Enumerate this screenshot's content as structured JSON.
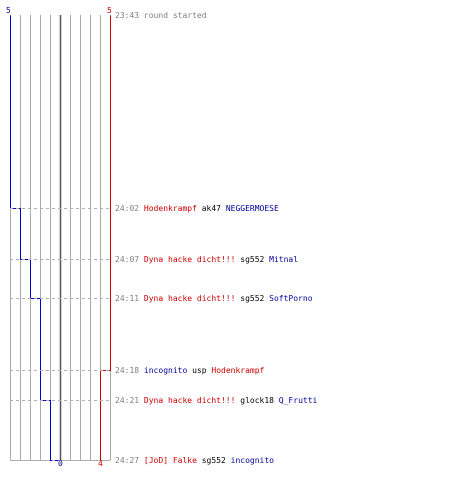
{
  "colors": {
    "team_blue": "#0000cc",
    "team_red": "#cc0000",
    "grid": "#aaaaaa",
    "center": "#555555",
    "connector": "#b0b0b0",
    "time_text": "#7f7f7f"
  },
  "scores": {
    "blue_top": "5",
    "red_top": "5",
    "blue_bottom": "0",
    "red_bottom": "4"
  },
  "events": [
    {
      "time": "23:43",
      "parts": [
        {
          "text": "round started",
          "color": "gray"
        }
      ],
      "blue": 5,
      "red": 5,
      "connector": false
    },
    {
      "time": "24:02",
      "parts": [
        {
          "text": "Hodenkrampf",
          "color": "red"
        },
        {
          "text": " ak47 ",
          "color": "black"
        },
        {
          "text": "NEGGERMOESE",
          "color": "blue"
        }
      ],
      "blue": 4,
      "red": 5,
      "connector": true
    },
    {
      "time": "24:07",
      "parts": [
        {
          "text": "Dyna hacke dicht!!!",
          "color": "red"
        },
        {
          "text": " sg552 ",
          "color": "black"
        },
        {
          "text": "Mitnal",
          "color": "blue"
        }
      ],
      "blue": 3,
      "red": 5,
      "connector": true
    },
    {
      "time": "24:11",
      "parts": [
        {
          "text": "Dyna hacke dicht!!!",
          "color": "red"
        },
        {
          "text": " sg552 ",
          "color": "black"
        },
        {
          "text": "SoftPorno",
          "color": "blue"
        }
      ],
      "blue": 2,
      "red": 5,
      "connector": true
    },
    {
      "time": "24:18",
      "parts": [
        {
          "text": "incognito",
          "color": "blue"
        },
        {
          "text": " usp ",
          "color": "black"
        },
        {
          "text": "Hodenkrampf",
          "color": "red"
        }
      ],
      "blue": 2,
      "red": 4,
      "connector": true
    },
    {
      "time": "24:21",
      "parts": [
        {
          "text": "Dyna hacke dicht!!!",
          "color": "red"
        },
        {
          "text": " glock18 ",
          "color": "black"
        },
        {
          "text": "Q_Frutti",
          "color": "blue"
        }
      ],
      "blue": 1,
      "red": 4,
      "connector": true
    },
    {
      "time": "24:27",
      "parts": [
        {
          "text": "[JoD] Falke",
          "color": "red"
        },
        {
          "text": " sg552 ",
          "color": "black"
        },
        {
          "text": "incognito",
          "color": "blue"
        }
      ],
      "blue": 0,
      "red": 4,
      "connector": true
    }
  ]
}
